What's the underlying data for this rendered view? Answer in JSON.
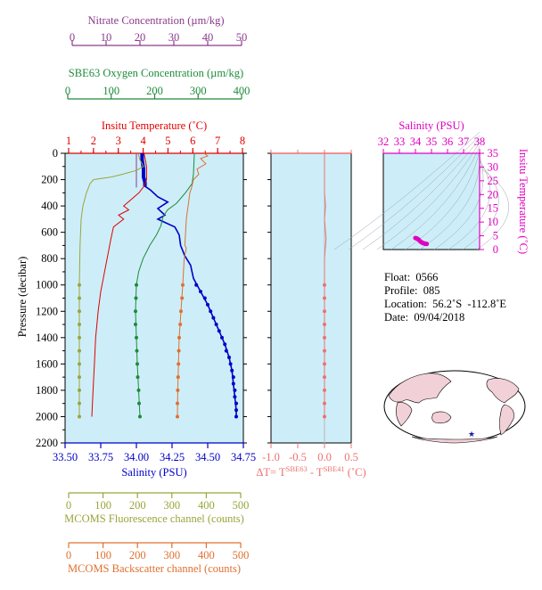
{
  "chart_data": {
    "type": "line",
    "pressure_axis": {
      "label": "Pressure (decibar)",
      "range": [
        2200,
        0
      ],
      "ticks": [
        0,
        200,
        400,
        600,
        800,
        1000,
        1200,
        1400,
        1600,
        1800,
        2000,
        2200
      ]
    },
    "axes": {
      "nitrate": {
        "label": "Nitrate Concentration (µm/kg)",
        "range": [
          0,
          50
        ],
        "ticks": [
          0,
          10,
          20,
          30,
          40,
          50
        ],
        "color": "#8b3a8b"
      },
      "oxygen": {
        "label": "SBE63 Oxygen Concentration (µm/kg)",
        "range": [
          0,
          400
        ],
        "ticks": [
          0,
          100,
          200,
          300,
          400
        ],
        "color": "#1e8b3a"
      },
      "temperature": {
        "label": "Insitu Temperature (˚C)",
        "range": [
          1,
          8
        ],
        "ticks": [
          1,
          2,
          3,
          4,
          5,
          6,
          7,
          8
        ],
        "color": "#e00000"
      },
      "salinity": {
        "label": "Salinity (PSU)",
        "range": [
          33.5,
          34.75
        ],
        "ticks": [
          "33.50",
          "33.75",
          "34.00",
          "34.25",
          "34.50",
          "34.75"
        ],
        "color": "#0000c8"
      },
      "fluorescence": {
        "label": "MCOMS Fluorescence channel (counts)",
        "range": [
          0,
          500
        ],
        "ticks": [
          0,
          100,
          200,
          300,
          400,
          500
        ],
        "color": "#9aa53a"
      },
      "backscatter": {
        "label": "MCOMS Backscatter channel (counts)",
        "range": [
          0,
          500
        ],
        "ticks": [
          0,
          100,
          200,
          300,
          400,
          500
        ],
        "color": "#e07030"
      },
      "delta_t": {
        "label_prefix": "ΔT= T",
        "label_sup1": "SBE63",
        "label_mid": " - T",
        "label_sup2": "SBE41",
        "label_suffix": " (˚C)",
        "range": [
          -1.0,
          0.5
        ],
        "ticks": [
          "-1.0",
          "-0.5",
          "0.0",
          "0.5"
        ],
        "color": "#f07070"
      }
    },
    "series": [
      {
        "name": "Salinity (PSU)",
        "axis": "salinity",
        "color": "#0000c8",
        "continuous": [
          [
            34.04,
            0
          ],
          [
            34.04,
            50
          ],
          [
            34.05,
            120
          ],
          [
            34.05,
            180
          ],
          [
            34.06,
            220
          ],
          [
            34.06,
            250
          ],
          [
            34.1,
            280
          ],
          [
            34.15,
            330
          ],
          [
            34.22,
            370
          ],
          [
            34.15,
            420
          ],
          [
            34.2,
            470
          ],
          [
            34.15,
            500
          ],
          [
            34.27,
            560
          ],
          [
            34.3,
            620
          ],
          [
            34.31,
            700
          ],
          [
            34.34,
            780
          ],
          [
            34.38,
            850
          ],
          [
            34.4,
            950
          ],
          [
            34.45,
            1050
          ],
          [
            34.5,
            1150
          ],
          [
            34.54,
            1250
          ],
          [
            34.58,
            1350
          ],
          [
            34.62,
            1450
          ],
          [
            34.65,
            1550
          ],
          [
            34.67,
            1650
          ],
          [
            34.68,
            1750
          ],
          [
            34.69,
            1850
          ],
          [
            34.7,
            1950
          ],
          [
            34.7,
            2000
          ]
        ],
        "discrete": [
          [
            34.42,
            1000
          ],
          [
            34.45,
            1050
          ],
          [
            34.48,
            1100
          ],
          [
            34.5,
            1150
          ],
          [
            34.52,
            1200
          ],
          [
            34.54,
            1250
          ],
          [
            34.56,
            1300
          ],
          [
            34.58,
            1350
          ],
          [
            34.6,
            1400
          ],
          [
            34.62,
            1450
          ],
          [
            34.63,
            1500
          ],
          [
            34.65,
            1550
          ],
          [
            34.66,
            1600
          ],
          [
            34.67,
            1650
          ],
          [
            34.68,
            1700
          ],
          [
            34.68,
            1750
          ],
          [
            34.69,
            1800
          ],
          [
            34.69,
            1850
          ],
          [
            34.7,
            1900
          ],
          [
            34.7,
            1950
          ],
          [
            34.7,
            2000
          ]
        ]
      },
      {
        "name": "Insitu Temperature (˚C)",
        "axis": "temperature",
        "color": "#e00000",
        "continuous": [
          [
            4.1,
            0
          ],
          [
            4.2,
            100
          ],
          [
            4.2,
            200
          ],
          [
            4.1,
            250
          ],
          [
            3.9,
            300
          ],
          [
            3.6,
            350
          ],
          [
            3.3,
            400
          ],
          [
            3.5,
            430
          ],
          [
            3.1,
            470
          ],
          [
            3.3,
            500
          ],
          [
            2.9,
            560
          ],
          [
            2.8,
            650
          ],
          [
            2.7,
            750
          ],
          [
            2.6,
            850
          ],
          [
            2.5,
            950
          ],
          [
            2.4,
            1050
          ],
          [
            2.3,
            1200
          ],
          [
            2.2,
            1400
          ],
          [
            2.15,
            1600
          ],
          [
            2.1,
            1800
          ],
          [
            2.05,
            2000
          ]
        ]
      },
      {
        "name": "SBE63 Oxygen Concentration (µm/kg)",
        "axis": "oxygen",
        "color": "#1e8b3a",
        "continuous": [
          [
            290,
            0
          ],
          [
            289,
            80
          ],
          [
            288,
            160
          ],
          [
            285,
            230
          ],
          [
            270,
            300
          ],
          [
            250,
            380
          ],
          [
            230,
            430
          ],
          [
            220,
            480
          ],
          [
            215,
            550
          ],
          [
            205,
            620
          ],
          [
            190,
            700
          ],
          [
            175,
            800
          ],
          [
            165,
            900
          ],
          [
            160,
            1000
          ],
          [
            158,
            1200
          ],
          [
            160,
            1400
          ],
          [
            162,
            1600
          ],
          [
            165,
            1800
          ],
          [
            168,
            2000
          ]
        ],
        "discrete": [
          [
            160,
            1000
          ],
          [
            159,
            1100
          ],
          [
            158,
            1200
          ],
          [
            158,
            1300
          ],
          [
            160,
            1400
          ],
          [
            161,
            1500
          ],
          [
            162,
            1600
          ],
          [
            163,
            1700
          ],
          [
            165,
            1800
          ],
          [
            166,
            1900
          ],
          [
            168,
            2000
          ]
        ]
      },
      {
        "name": "Nitrate Concentration (µm/kg)",
        "axis": "nitrate",
        "color": "#8b3a8b",
        "continuous": [
          [
            20,
            0
          ],
          [
            20,
            100
          ],
          [
            20,
            200
          ],
          [
            20,
            260
          ]
        ]
      },
      {
        "name": "MCOMS Fluorescence channel (counts)",
        "axis": "fluorescence",
        "color": "#9aa53a",
        "continuous": [
          [
            205,
            0
          ],
          [
            210,
            50
          ],
          [
            220,
            100
          ],
          [
            200,
            130
          ],
          [
            160,
            160
          ],
          [
            130,
            180
          ],
          [
            80,
            200
          ],
          [
            70,
            230
          ],
          [
            60,
            300
          ],
          [
            50,
            400
          ],
          [
            45,
            500
          ],
          [
            42,
            700
          ],
          [
            40,
            1000
          ],
          [
            40,
            1500
          ],
          [
            40,
            2000
          ]
        ],
        "discrete": [
          [
            40,
            1000
          ],
          [
            40,
            1100
          ],
          [
            40,
            1200
          ],
          [
            40,
            1300
          ],
          [
            40,
            1400
          ],
          [
            40,
            1500
          ],
          [
            40,
            1600
          ],
          [
            40,
            1700
          ],
          [
            40,
            1800
          ],
          [
            40,
            1900
          ],
          [
            40,
            2000
          ]
        ]
      },
      {
        "name": "MCOMS Backscatter channel (counts)",
        "axis": "backscatter",
        "color": "#e07030",
        "continuous": [
          [
            390,
            0
          ],
          [
            400,
            20
          ],
          [
            380,
            40
          ],
          [
            395,
            80
          ],
          [
            370,
            120
          ],
          [
            375,
            160
          ],
          [
            360,
            200
          ],
          [
            355,
            260
          ],
          [
            350,
            300
          ],
          [
            345,
            400
          ],
          [
            340,
            500
          ],
          [
            338,
            600
          ],
          [
            336,
            700
          ],
          [
            340,
            720
          ],
          [
            334,
            800
          ],
          [
            332,
            900
          ],
          [
            330,
            1000
          ],
          [
            325,
            1200
          ],
          [
            320,
            1400
          ],
          [
            318,
            1600
          ],
          [
            316,
            1800
          ],
          [
            315,
            2000
          ]
        ],
        "discrete": [
          [
            330,
            1000
          ],
          [
            328,
            1100
          ],
          [
            325,
            1200
          ],
          [
            323,
            1300
          ],
          [
            320,
            1400
          ],
          [
            319,
            1500
          ],
          [
            318,
            1600
          ],
          [
            317,
            1700
          ],
          [
            316,
            1800
          ],
          [
            315,
            1900
          ],
          [
            315,
            2000
          ]
        ]
      },
      {
        "name": "ΔT",
        "axis": "delta_t",
        "color": "#f07070",
        "continuous": [
          [
            0.0,
            0
          ],
          [
            0.0,
            300
          ],
          [
            0.02,
            400
          ],
          [
            0.0,
            500
          ],
          [
            0.03,
            650
          ],
          [
            0.0,
            800
          ],
          [
            0.0,
            1200
          ],
          [
            0.0,
            1600
          ],
          [
            0.0,
            2000
          ]
        ],
        "discrete": [
          [
            0.0,
            1000
          ],
          [
            0.0,
            1100
          ],
          [
            0.0,
            1200
          ],
          [
            0.0,
            1300
          ],
          [
            0.0,
            1400
          ],
          [
            0.0,
            1500
          ],
          [
            0.0,
            1600
          ],
          [
            0.0,
            1700
          ],
          [
            0.0,
            1800
          ],
          [
            0.0,
            1900
          ],
          [
            0.0,
            2000
          ]
        ]
      }
    ],
    "ts_diagram": {
      "x_label": "Salinity (PSU)",
      "x_range": [
        32,
        38
      ],
      "x_ticks": [
        32,
        33,
        34,
        35,
        36,
        37,
        38
      ],
      "y_label": "Insitu Temperature (˚C)",
      "y_range": [
        0,
        35
      ],
      "y_ticks": [
        0,
        5,
        10,
        15,
        20,
        25,
        30,
        35
      ],
      "color": "#e000c0",
      "points": [
        [
          34.0,
          4.2
        ],
        [
          34.1,
          4.0
        ],
        [
          34.2,
          3.6
        ],
        [
          34.3,
          3.0
        ],
        [
          34.4,
          2.6
        ],
        [
          34.5,
          2.3
        ],
        [
          34.6,
          2.15
        ],
        [
          34.7,
          2.05
        ]
      ]
    },
    "grid": false,
    "background_color": "#cdeef8"
  },
  "info": {
    "float": "Float:  0566",
    "profile": "Profile:  085",
    "location": "Location:  56.2˚S  -112.8˚E",
    "date": "Date:  09/04/2018"
  },
  "map": {
    "marker": "float-position-star",
    "marker_color": "#1a1aa0",
    "land_color": "#f2d0d8"
  }
}
